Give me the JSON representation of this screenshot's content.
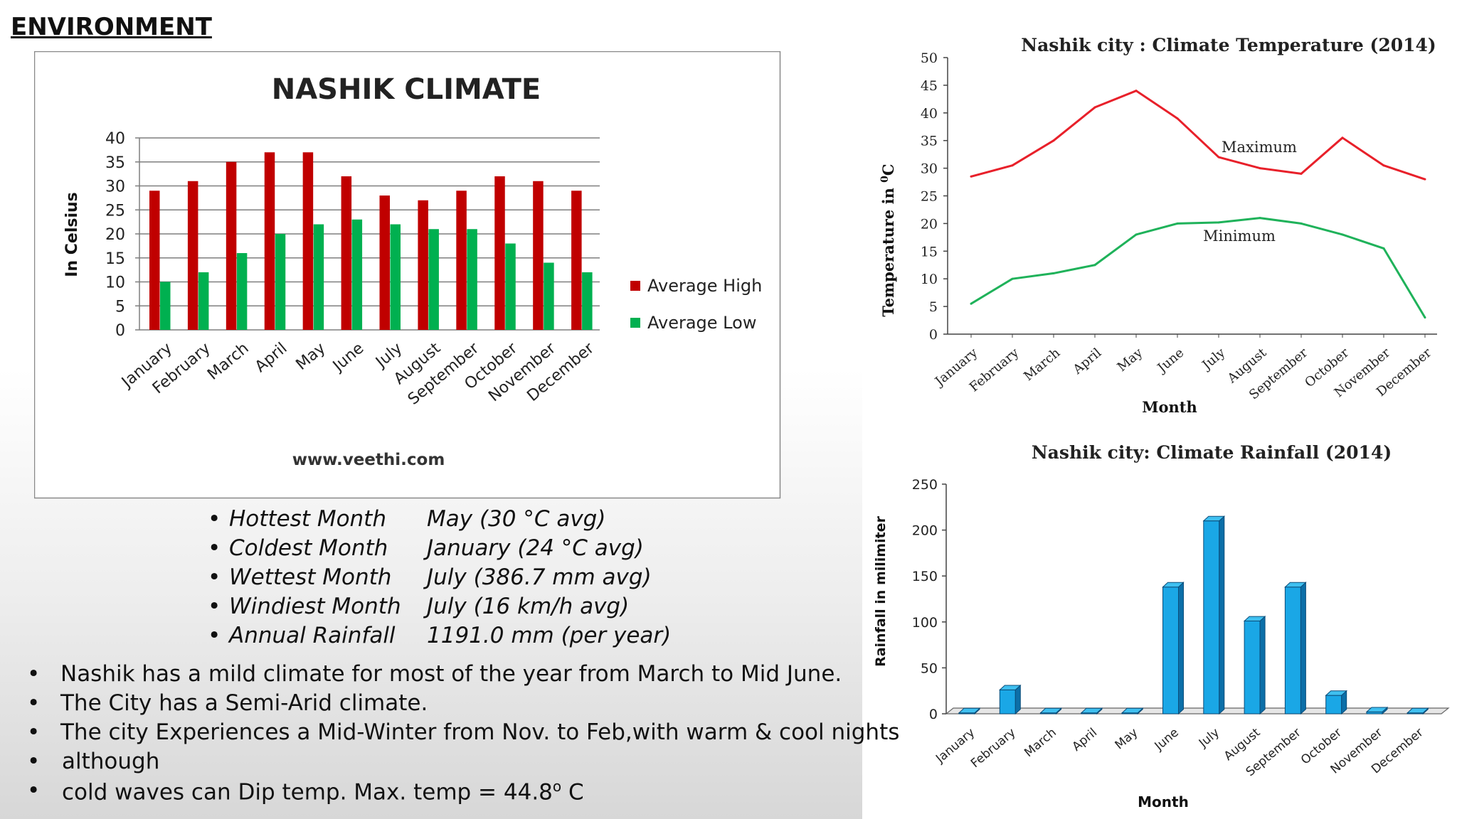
{
  "page": {
    "heading": "ENVIRONMENT"
  },
  "chart_data": [
    {
      "type": "bar",
      "title": "NASHIK CLIMATE",
      "ylabel": "In Celsius",
      "xlabel": "",
      "ylim": [
        0,
        40
      ],
      "yticks": [
        "0",
        "5",
        "10",
        "15",
        "20",
        "25",
        "30",
        "35",
        "40"
      ],
      "categories": [
        "January",
        "February",
        "March",
        "April",
        "May",
        "June",
        "July",
        "August",
        "September",
        "October",
        "November",
        "December"
      ],
      "series": [
        {
          "name": "Average High",
          "color": "#c00000",
          "values": [
            29,
            31,
            35,
            37,
            37,
            32,
            28,
            27,
            29,
            32,
            31,
            29
          ]
        },
        {
          "name": "Average Low",
          "color": "#00b050",
          "values": [
            10,
            12,
            16,
            20,
            22,
            23,
            22,
            21,
            21,
            18,
            14,
            12
          ]
        }
      ],
      "grid": true,
      "legend": "right",
      "footer": "www.veethi.com"
    },
    {
      "type": "line",
      "title": "Nashik city : Climate Temperature (2014)",
      "xlabel": "Month",
      "ylabel": "Temperature in",
      "ylabel_unit": "C",
      "ylabel_unit_sup": "0",
      "ylim": [
        0,
        50
      ],
      "yticks": [
        "0",
        "5",
        "10",
        "15",
        "20",
        "25",
        "30",
        "35",
        "40",
        "45",
        "50"
      ],
      "categories": [
        "January",
        "February",
        "March",
        "April",
        "May",
        "June",
        "July",
        "August",
        "September",
        "October",
        "November",
        "December"
      ],
      "series": [
        {
          "name": "Maximum",
          "color": "#e8202a",
          "values": [
            28.5,
            30.5,
            35,
            41,
            44,
            39,
            32,
            30,
            29,
            35.5,
            30.5,
            28
          ]
        },
        {
          "name": "Minimum",
          "color": "#1fb25a",
          "values": [
            5.5,
            10,
            11,
            12.5,
            18,
            20,
            20.2,
            21,
            20,
            18,
            15.5,
            3
          ]
        }
      ],
      "grid": false
    },
    {
      "type": "bar",
      "title": "Nashik city: Climate Rainfall (2014)",
      "xlabel": "Month",
      "ylabel": "Rainfall in milimiter",
      "ylim": [
        0,
        250
      ],
      "yticks": [
        "0",
        "50",
        "100",
        "150",
        "200",
        "250"
      ],
      "categories": [
        "January",
        "February",
        "March",
        "April",
        "May",
        "June",
        "July",
        "August",
        "September",
        "October",
        "November",
        "December"
      ],
      "values": [
        1,
        26,
        1,
        1,
        1,
        138,
        210,
        101,
        138,
        20,
        2,
        1
      ],
      "color": "#1aa7e6",
      "grid": false
    }
  ],
  "stats": [
    {
      "label": "Hottest Month",
      "value": "May (30 °C avg)"
    },
    {
      "label": "Coldest Month",
      "value": "January (24 °C avg)"
    },
    {
      "label": "Wettest Month",
      "value": "July (386.7 mm avg)"
    },
    {
      "label": "Windiest Month",
      "value": "July (16 km/h avg)"
    },
    {
      "label": "Annual Rainfall",
      "value": "1191.0 mm (per year)"
    }
  ],
  "notes": [
    " Nashik has a mild climate for most of the year from March to Mid June.",
    " The City has a Semi-Arid climate.",
    " The city Experiences a Mid-Winter from Nov. to Feb,with warm & cool nights",
    "although",
    "cold waves can Dip temp. Max. temp = 44.8"
  ],
  "notes_suffix": {
    "sup": "o",
    "tail": " C"
  },
  "bullet": "•"
}
